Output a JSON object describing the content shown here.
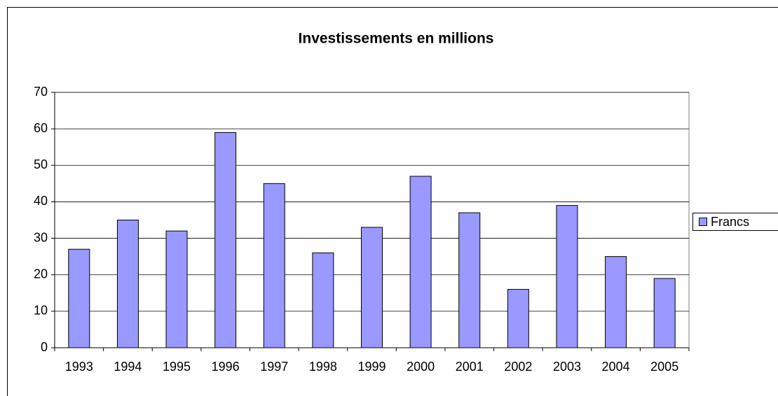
{
  "chart_data": {
    "type": "bar",
    "title": "Investissements en millions",
    "categories": [
      "1993",
      "1994",
      "1995",
      "1996",
      "1997",
      "1998",
      "1999",
      "2000",
      "2001",
      "2002",
      "2003",
      "2004",
      "2005"
    ],
    "series": [
      {
        "name": "Francs",
        "color": "#9999ff",
        "values": [
          27,
          35,
          32,
          59,
          45,
          26,
          33,
          47,
          37,
          16,
          39,
          25,
          19
        ]
      }
    ],
    "ylim": [
      0,
      70
    ],
    "yticks": [
      0,
      10,
      20,
      30,
      40,
      50,
      60,
      70
    ],
    "grid": true,
    "legend": "right"
  }
}
